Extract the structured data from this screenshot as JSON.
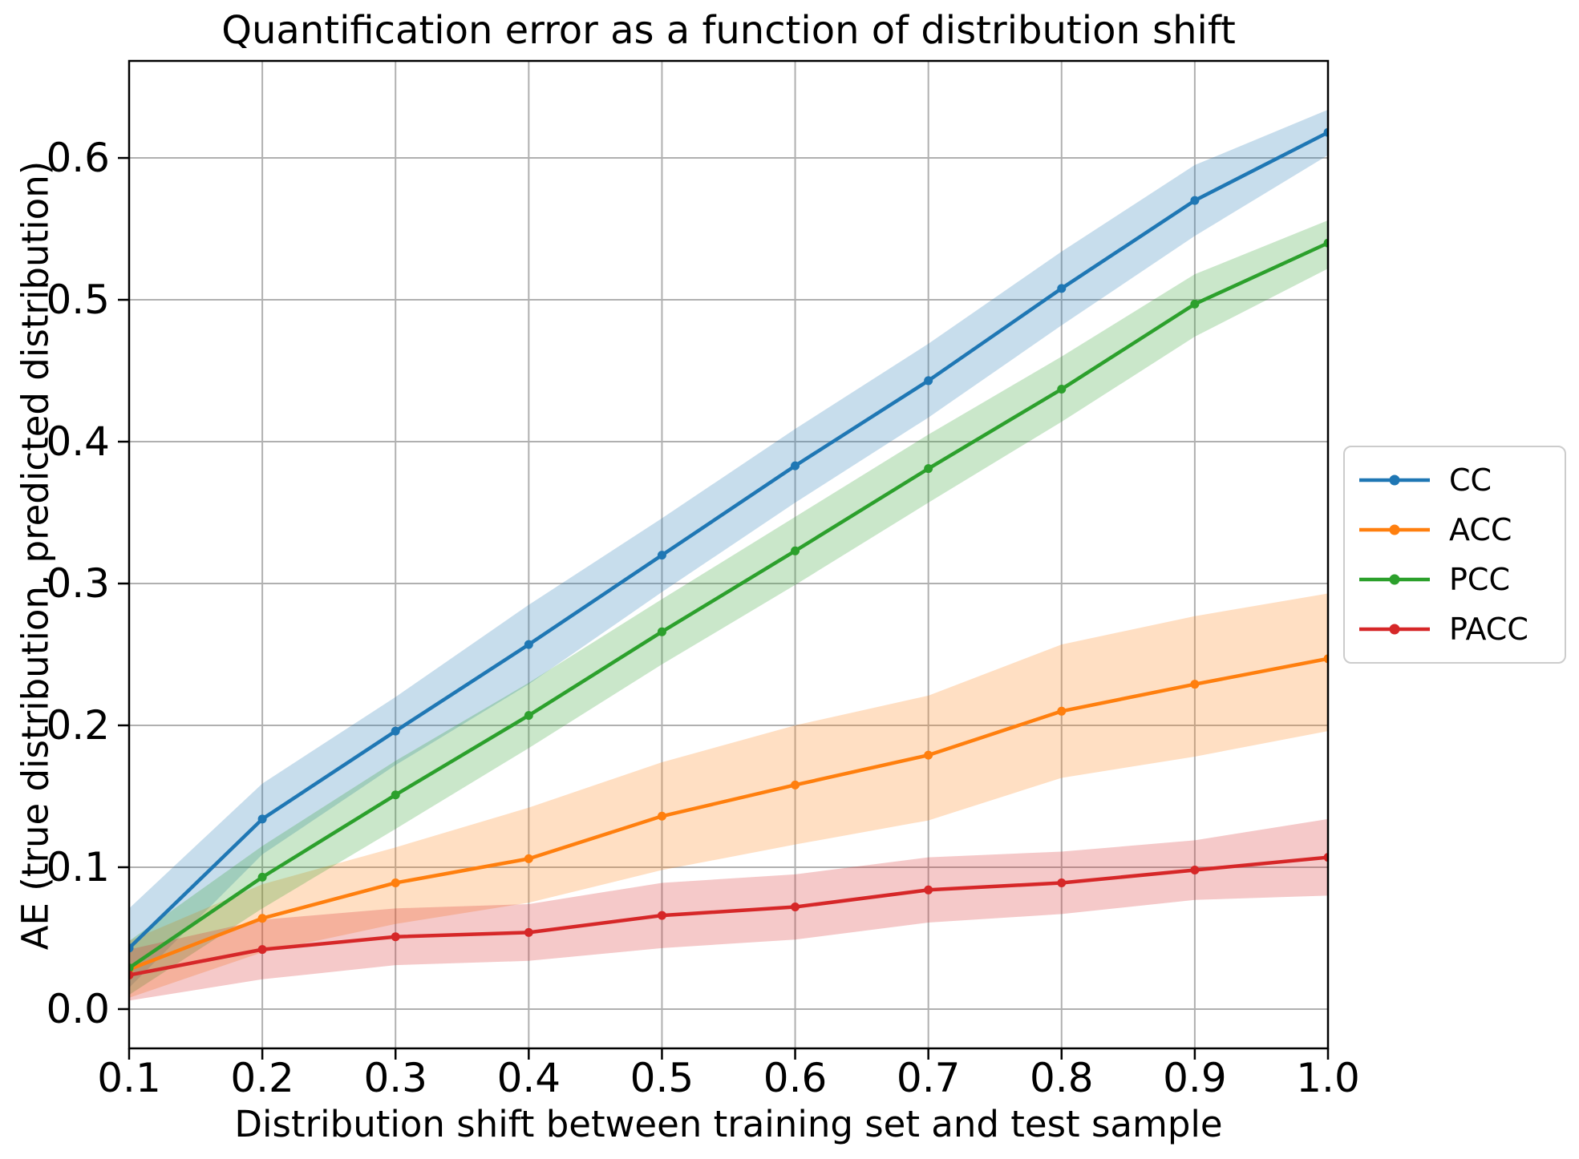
{
  "chart_data": {
    "type": "line",
    "title": "Quantification error as a function of distribution shift",
    "xlabel": "Distribution shift between training set and test sample",
    "ylabel": "AE (true distribution, predicted distribution)",
    "x": [
      0.1,
      0.2,
      0.3,
      0.4,
      0.5,
      0.6,
      0.7,
      0.8,
      0.9,
      1.0
    ],
    "x_tick_labels": [
      "0.1",
      "0.2",
      "0.3",
      "0.4",
      "0.5",
      "0.6",
      "0.7",
      "0.8",
      "0.9",
      "1.0"
    ],
    "y_ticks": [
      0.0,
      0.1,
      0.2,
      0.3,
      0.4,
      0.5,
      0.6
    ],
    "y_tick_labels": [
      "0.0",
      "0.1",
      "0.2",
      "0.3",
      "0.4",
      "0.5",
      "0.6"
    ],
    "xlim": [
      0.1,
      1.0
    ],
    "ylim": [
      -0.0277,
      0.6684
    ],
    "grid": true,
    "grid_color": "#b0b0b0",
    "spine_color": "#000000",
    "band_opacity": 0.25,
    "legend_position": "outside-right",
    "series": [
      {
        "name": "CC",
        "color": "#1f77b4",
        "values": [
          0.043,
          0.134,
          0.196,
          0.257,
          0.32,
          0.383,
          0.443,
          0.508,
          0.57,
          0.618
        ],
        "band_lower": [
          0.015,
          0.109,
          0.172,
          0.229,
          0.294,
          0.357,
          0.417,
          0.482,
          0.545,
          0.602
        ],
        "band_upper": [
          0.071,
          0.159,
          0.22,
          0.285,
          0.346,
          0.409,
          0.469,
          0.534,
          0.595,
          0.634
        ]
      },
      {
        "name": "ACC",
        "color": "#ff7f0e",
        "values": [
          0.028,
          0.064,
          0.089,
          0.106,
          0.136,
          0.158,
          0.179,
          0.21,
          0.229,
          0.247
        ],
        "band_lower": [
          0.008,
          0.04,
          0.06,
          0.075,
          0.098,
          0.116,
          0.133,
          0.163,
          0.178,
          0.196
        ],
        "band_upper": [
          0.048,
          0.088,
          0.114,
          0.142,
          0.174,
          0.2,
          0.221,
          0.257,
          0.277,
          0.293
        ]
      },
      {
        "name": "PCC",
        "color": "#2ca02c",
        "values": [
          0.029,
          0.093,
          0.151,
          0.207,
          0.266,
          0.323,
          0.381,
          0.437,
          0.497,
          0.54
        ],
        "band_lower": [
          0.01,
          0.071,
          0.127,
          0.184,
          0.243,
          0.299,
          0.357,
          0.414,
          0.474,
          0.522
        ],
        "band_upper": [
          0.048,
          0.115,
          0.175,
          0.23,
          0.289,
          0.347,
          0.405,
          0.46,
          0.518,
          0.556
        ]
      },
      {
        "name": "PACC",
        "color": "#d62728",
        "values": [
          0.024,
          0.042,
          0.051,
          0.054,
          0.066,
          0.072,
          0.084,
          0.089,
          0.098,
          0.107
        ],
        "band_lower": [
          0.006,
          0.021,
          0.031,
          0.034,
          0.043,
          0.049,
          0.061,
          0.067,
          0.077,
          0.08
        ],
        "band_upper": [
          0.042,
          0.063,
          0.071,
          0.074,
          0.089,
          0.095,
          0.107,
          0.111,
          0.119,
          0.134
        ]
      }
    ]
  }
}
